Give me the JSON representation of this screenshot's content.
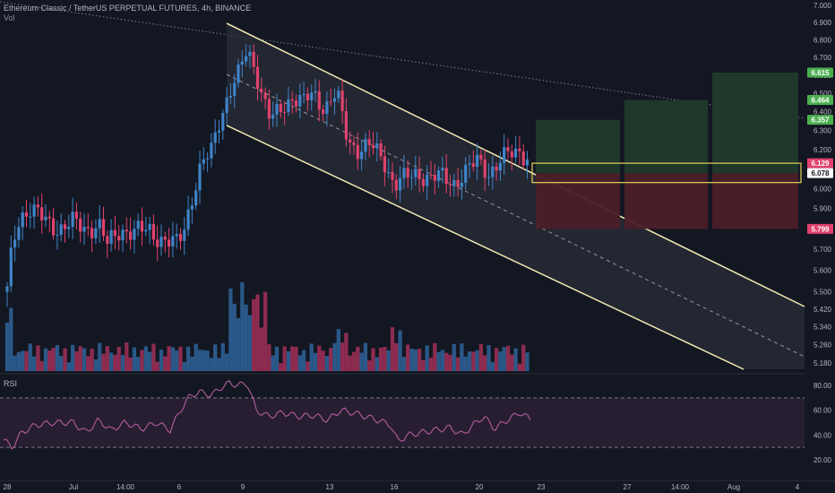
{
  "header": {
    "title": "Ethereum Classic / TetherUS PERPETUAL FUTURES, 4h, BINANCE",
    "volume_label": "Vol",
    "rsi_label": "RSI"
  },
  "colors": {
    "background": "#131722",
    "up": "#3f84c8",
    "down": "#e0426d",
    "up_volume": "#2d5f93",
    "down_volume": "#9b2f55",
    "channel_line": "#f2ebb0",
    "channel_fill": "#2a2d38",
    "profit_zone": "#1f3a2c",
    "loss_zone": "#4b1f29",
    "entry_box": "#e5d35a",
    "rsi_line": "#b35d9e",
    "rsi_band": "#2a1f33",
    "trendline": "#9598a1"
  },
  "chart_data": [
    {
      "type": "candlestick",
      "title": "Ethereum Classic / TetherUS PERPETUAL FUTURES, 4h, BINANCE",
      "x_ticks": [
        "28",
        "Jul",
        "14:00",
        "6",
        "9",
        "13",
        "16",
        "20",
        "23",
        "27",
        "14:00",
        "Aug",
        "4"
      ],
      "y_ticks": [
        5.18,
        5.26,
        5.34,
        5.42,
        5.5,
        5.6,
        5.7,
        5.8,
        5.9,
        6.0,
        6.1,
        6.2,
        6.3,
        6.4,
        6.5,
        6.6,
        6.7,
        6.8,
        6.9,
        7.0
      ],
      "y_tick_labels": [
        "5.180",
        "5.260",
        "5.340",
        "5.420",
        "5.500",
        "5.600",
        "5.700",
        "5.800",
        "5.900",
        "6.000",
        "6.100",
        "6.200",
        "6.300",
        "6.400",
        "6.500",
        "6.600",
        "6.700",
        "6.800",
        "6.900",
        "7.000"
      ],
      "ylim": [
        5.15,
        7.02
      ],
      "scale": "log",
      "grid": false,
      "series_key_points": [
        {
          "x": "28",
          "close": 5.5
        },
        {
          "x": "Jul",
          "close": 5.86
        },
        {
          "x": "14:00",
          "close": 5.8
        },
        {
          "x": "6",
          "close": 5.72
        },
        {
          "x": "9",
          "close": 6.8
        },
        {
          "x": "13",
          "close": 6.45
        },
        {
          "x": "16",
          "close": 6.02
        },
        {
          "x": "20",
          "close": 6.1
        },
        {
          "x": "23",
          "close": 6.13
        }
      ],
      "price_labels": [
        {
          "value": 6.615,
          "label": "6.615",
          "color": "#4caf50"
        },
        {
          "value": 6.464,
          "label": "6.464",
          "color": "#4caf50"
        },
        {
          "value": 6.357,
          "label": "6.357",
          "color": "#4caf50"
        },
        {
          "value": 6.129,
          "label": "6.129",
          "color": "#e0426d"
        },
        {
          "value": 6.078,
          "label": "6.078",
          "color": "#ffffff"
        },
        {
          "value": 5.799,
          "label": "5.799",
          "color": "#e0426d"
        }
      ],
      "drawings": {
        "descending_channel": true,
        "descending_trendline": true,
        "long_positions": [
          {
            "target": 6.357,
            "stop": 5.799
          },
          {
            "target": 6.464,
            "stop": 5.799
          },
          {
            "target": 6.615,
            "stop": 5.799
          }
        ],
        "entry_zone": [
          6.03,
          6.129
        ]
      }
    },
    {
      "type": "bar",
      "title": "Vol",
      "description_series": "volume"
    },
    {
      "type": "line",
      "title": "RSI",
      "y_ticks": [
        20,
        40,
        60,
        80
      ],
      "y_tick_labels": [
        "20.00",
        "40.00",
        "60.00",
        "80.00"
      ],
      "ylim": [
        15,
        85
      ],
      "band": [
        30,
        70
      ],
      "key_points": [
        {
          "x": "28",
          "value": 36
        },
        {
          "x": "Jul",
          "value": 50
        },
        {
          "x": "14:00",
          "value": 45
        },
        {
          "x": "6",
          "value": 58
        },
        {
          "x": "9",
          "value": 80
        },
        {
          "x": "13",
          "value": 55
        },
        {
          "x": "16",
          "value": 35
        },
        {
          "x": "20",
          "value": 52
        },
        {
          "x": "23",
          "value": 52
        }
      ]
    }
  ]
}
